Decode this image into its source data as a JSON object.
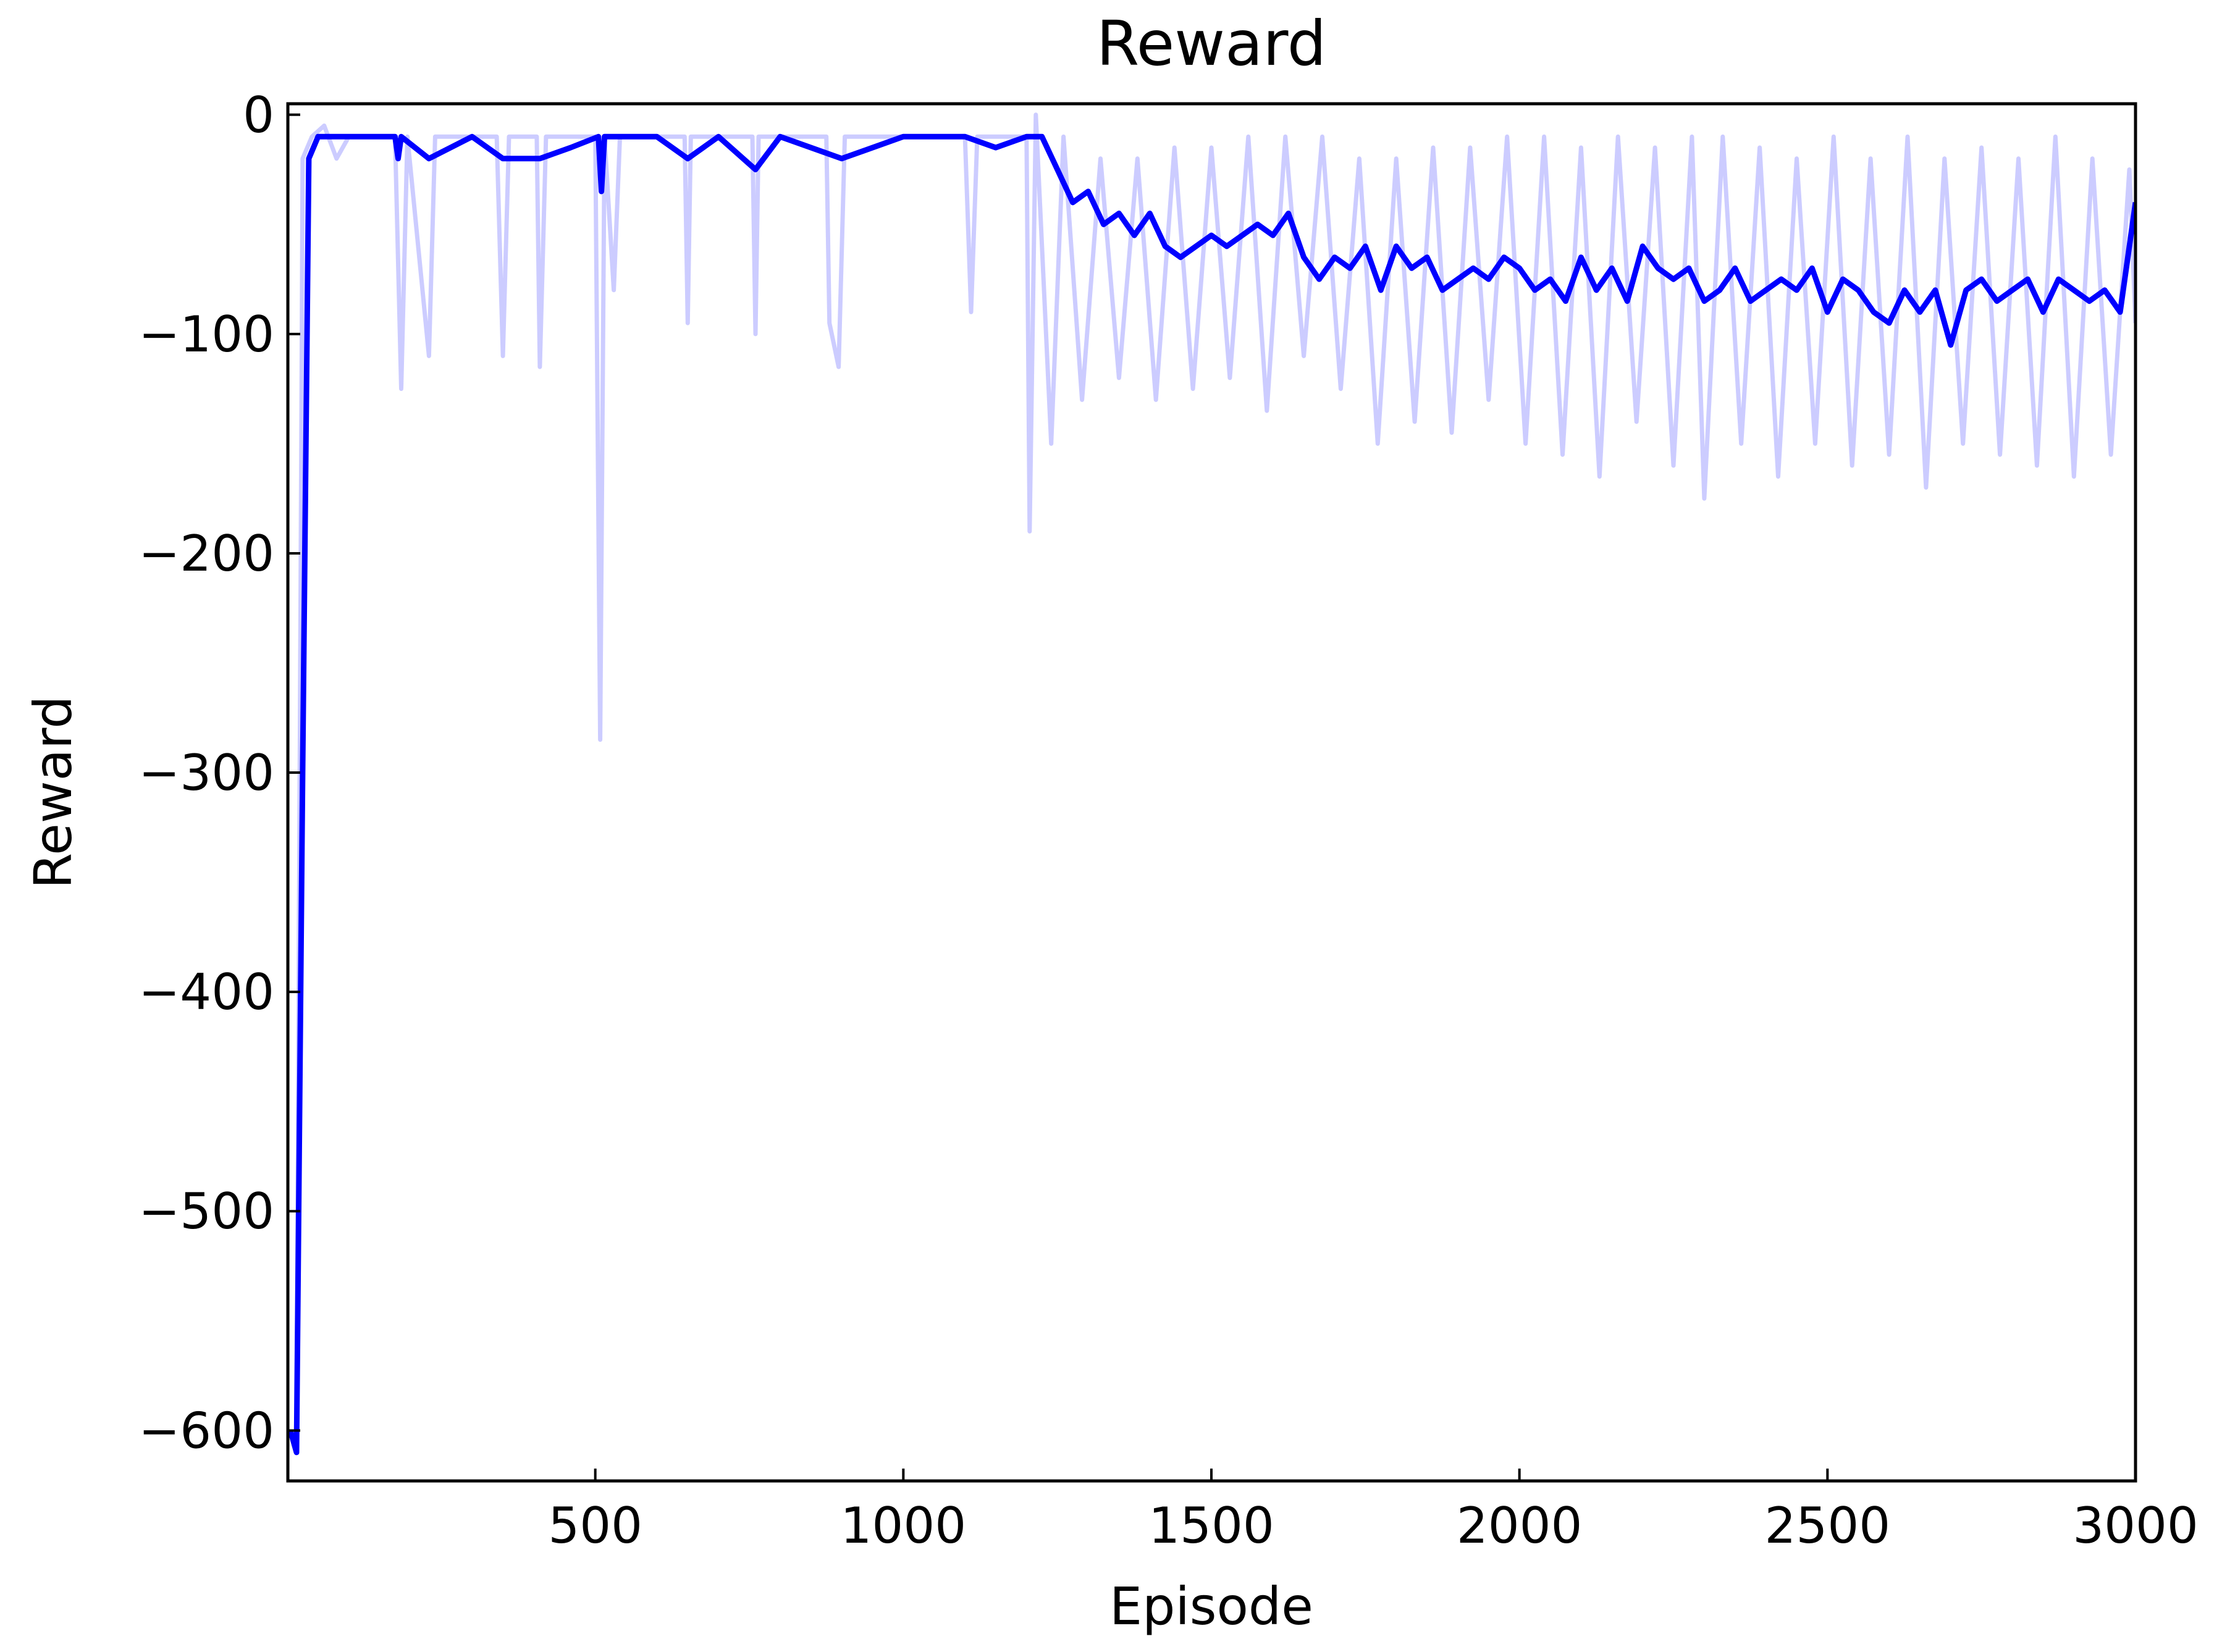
{
  "chart_data": {
    "type": "line",
    "title": "Reward",
    "xlabel": "Episode",
    "ylabel": "Reward",
    "xlim": [
      1,
      3000
    ],
    "ylim": [
      -623,
      5
    ],
    "xticks": [
      500,
      1000,
      1500,
      2000,
      2500,
      3000
    ],
    "yticks": [
      {
        "value": -600,
        "label": "−600"
      },
      {
        "value": -500,
        "label": "−500"
      },
      {
        "value": -400,
        "label": "−400"
      },
      {
        "value": -300,
        "label": "−300"
      },
      {
        "value": -200,
        "label": "−200"
      },
      {
        "value": -100,
        "label": "−100"
      },
      0
    ],
    "grid": false,
    "series": [
      {
        "color": "#ccccff",
        "width": 7,
        "x": [
          5,
          15,
          25,
          40,
          60,
          80,
          100,
          175,
          185,
          195,
          230,
          240,
          340,
          350,
          360,
          405,
          410,
          420,
          500,
          508,
          515,
          530,
          540,
          645,
          650,
          655,
          755,
          760,
          765,
          875,
          880,
          895,
          905,
          1100,
          1110,
          1120,
          1200,
          1205,
          1215,
          1240,
          1260,
          1290,
          1320,
          1350,
          1380,
          1410,
          1440,
          1470,
          1500,
          1530,
          1560,
          1590,
          1620,
          1650,
          1680,
          1710,
          1740,
          1770,
          1800,
          1830,
          1860,
          1890,
          1920,
          1950,
          1980,
          2010,
          2040,
          2070,
          2100,
          2130,
          2160,
          2190,
          2220,
          2250,
          2280,
          2300,
          2330,
          2360,
          2390,
          2420,
          2450,
          2480,
          2510,
          2540,
          2570,
          2600,
          2630,
          2660,
          2690,
          2720,
          2750,
          2780,
          2810,
          2840,
          2870,
          2900,
          2930,
          2960,
          2990,
          3000
        ],
        "values": [
          -600,
          -610,
          -20,
          -10,
          -5,
          -20,
          -10,
          -10,
          -125,
          -10,
          -110,
          -10,
          -10,
          -110,
          -10,
          -10,
          -115,
          -10,
          -10,
          -285,
          -10,
          -80,
          -10,
          -10,
          -95,
          -10,
          -10,
          -100,
          -10,
          -10,
          -95,
          -115,
          -10,
          -10,
          -90,
          -10,
          -10,
          -190,
          0,
          -150,
          -10,
          -130,
          -20,
          -120,
          -20,
          -130,
          -15,
          -125,
          -15,
          -120,
          -10,
          -135,
          -10,
          -110,
          -10,
          -125,
          -20,
          -150,
          -20,
          -140,
          -15,
          -145,
          -15,
          -130,
          -10,
          -150,
          -10,
          -155,
          -15,
          -165,
          -10,
          -140,
          -15,
          -160,
          -10,
          -175,
          -10,
          -150,
          -15,
          -165,
          -20,
          -150,
          -10,
          -160,
          -20,
          -155,
          -10,
          -170,
          -20,
          -150,
          -15,
          -155,
          -20,
          -160,
          -10,
          -165,
          -20,
          -155,
          -25,
          -95
        ]
      },
      {
        "color": "#0000ff",
        "width": 9,
        "x": [
          5,
          15,
          25,
          35,
          50,
          100,
          175,
          180,
          185,
          230,
          300,
          350,
          410,
          460,
          505,
          510,
          515,
          600,
          650,
          700,
          760,
          800,
          900,
          1000,
          1100,
          1150,
          1200,
          1225,
          1250,
          1275,
          1300,
          1325,
          1350,
          1375,
          1400,
          1425,
          1450,
          1475,
          1500,
          1525,
          1550,
          1575,
          1600,
          1625,
          1650,
          1675,
          1700,
          1725,
          1750,
          1775,
          1800,
          1825,
          1850,
          1875,
          1900,
          1925,
          1950,
          1975,
          2000,
          2025,
          2050,
          2075,
          2100,
          2125,
          2150,
          2175,
          2200,
          2225,
          2250,
          2275,
          2300,
          2325,
          2350,
          2375,
          2400,
          2425,
          2450,
          2475,
          2500,
          2525,
          2550,
          2575,
          2600,
          2625,
          2650,
          2675,
          2700,
          2725,
          2750,
          2775,
          2800,
          2825,
          2850,
          2875,
          2900,
          2925,
          2950,
          2975,
          3000
        ],
        "values": [
          -600,
          -610,
          -300,
          -20,
          -10,
          -10,
          -10,
          -20,
          -10,
          -20,
          -10,
          -20,
          -20,
          -15,
          -10,
          -35,
          -10,
          -10,
          -20,
          -10,
          -25,
          -10,
          -20,
          -10,
          -10,
          -15,
          -10,
          -10,
          -25,
          -40,
          -35,
          -50,
          -45,
          -55,
          -45,
          -60,
          -65,
          -60,
          -55,
          -60,
          -55,
          -50,
          -55,
          -45,
          -65,
          -75,
          -65,
          -70,
          -60,
          -80,
          -60,
          -70,
          -65,
          -80,
          -75,
          -70,
          -75,
          -65,
          -70,
          -80,
          -75,
          -85,
          -65,
          -80,
          -70,
          -85,
          -60,
          -70,
          -75,
          -70,
          -85,
          -80,
          -70,
          -85,
          -80,
          -75,
          -80,
          -70,
          -90,
          -75,
          -80,
          -90,
          -95,
          -80,
          -90,
          -80,
          -105,
          -80,
          -75,
          -85,
          -80,
          -75,
          -90,
          -75,
          -80,
          -85,
          -80,
          -90,
          -40
        ]
      }
    ]
  }
}
